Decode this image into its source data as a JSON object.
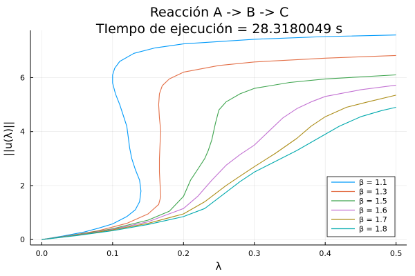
{
  "chart_data": {
    "type": "line",
    "title": "Reacción A -> B -> C",
    "subtitle": "TIempo de ejecución = 28.3180049 s",
    "xlabel": "λ",
    "ylabel": "||u(λ)||",
    "xlim": [
      -0.016,
      0.515
    ],
    "ylim": [
      -0.2,
      7.75
    ],
    "xticks": [
      0.0,
      0.1,
      0.2,
      0.3,
      0.4,
      0.5
    ],
    "xtick_labels": [
      "0.0",
      "0.1",
      "0.2",
      "0.3",
      "0.4",
      "0.5"
    ],
    "yticks": [
      0,
      2,
      4,
      6
    ],
    "ytick_labels": [
      "0",
      "2",
      "4",
      "6"
    ],
    "grid": true,
    "legend_position": "bottom-right",
    "series": [
      {
        "name": "β = 1.1",
        "color": "#009AFA",
        "points": [
          [
            0,
            0
          ],
          [
            0.03,
            0.13
          ],
          [
            0.06,
            0.28
          ],
          [
            0.08,
            0.42
          ],
          [
            0.1,
            0.58
          ],
          [
            0.12,
            0.85
          ],
          [
            0.132,
            1.1
          ],
          [
            0.138,
            1.4
          ],
          [
            0.14,
            1.8
          ],
          [
            0.138,
            2.2
          ],
          [
            0.132,
            2.6
          ],
          [
            0.127,
            3.0
          ],
          [
            0.124,
            3.4
          ],
          [
            0.122,
            3.8
          ],
          [
            0.12,
            4.2
          ],
          [
            0.115,
            4.6
          ],
          [
            0.11,
            5.0
          ],
          [
            0.104,
            5.4
          ],
          [
            0.1,
            5.8
          ],
          [
            0.1,
            6.1
          ],
          [
            0.103,
            6.35
          ],
          [
            0.11,
            6.6
          ],
          [
            0.13,
            6.9
          ],
          [
            0.16,
            7.1
          ],
          [
            0.2,
            7.25
          ],
          [
            0.3,
            7.42
          ],
          [
            0.4,
            7.52
          ],
          [
            0.5,
            7.58
          ]
        ]
      },
      {
        "name": "β = 1.3",
        "color": "#E36F47",
        "points": [
          [
            0,
            0
          ],
          [
            0.04,
            0.15
          ],
          [
            0.08,
            0.33
          ],
          [
            0.12,
            0.6
          ],
          [
            0.15,
            0.95
          ],
          [
            0.165,
            1.3
          ],
          [
            0.168,
            1.6
          ],
          [
            0.167,
            2.0
          ],
          [
            0.166,
            2.5
          ],
          [
            0.166,
            3.0
          ],
          [
            0.167,
            3.6
          ],
          [
            0.168,
            4.0
          ],
          [
            0.166,
            4.5
          ],
          [
            0.165,
            5.0
          ],
          [
            0.166,
            5.4
          ],
          [
            0.17,
            5.7
          ],
          [
            0.18,
            5.95
          ],
          [
            0.2,
            6.2
          ],
          [
            0.25,
            6.45
          ],
          [
            0.3,
            6.58
          ],
          [
            0.4,
            6.72
          ],
          [
            0.5,
            6.82
          ]
        ]
      },
      {
        "name": "β = 1.5",
        "color": "#3EA44E",
        "points": [
          [
            0,
            0
          ],
          [
            0.05,
            0.18
          ],
          [
            0.1,
            0.4
          ],
          [
            0.15,
            0.72
          ],
          [
            0.18,
            1.05
          ],
          [
            0.2,
            1.6
          ],
          [
            0.21,
            2.2
          ],
          [
            0.22,
            2.6
          ],
          [
            0.23,
            3.0
          ],
          [
            0.235,
            3.3
          ],
          [
            0.24,
            3.7
          ],
          [
            0.245,
            4.3
          ],
          [
            0.25,
            4.8
          ],
          [
            0.26,
            5.1
          ],
          [
            0.28,
            5.4
          ],
          [
            0.3,
            5.6
          ],
          [
            0.35,
            5.82
          ],
          [
            0.4,
            5.95
          ],
          [
            0.5,
            6.1
          ]
        ]
      },
      {
        "name": "β = 1.6",
        "color": "#C271D2",
        "points": [
          [
            0,
            0
          ],
          [
            0.05,
            0.17
          ],
          [
            0.1,
            0.38
          ],
          [
            0.15,
            0.66
          ],
          [
            0.2,
            1.15
          ],
          [
            0.22,
            1.6
          ],
          [
            0.24,
            2.2
          ],
          [
            0.26,
            2.75
          ],
          [
            0.28,
            3.15
          ],
          [
            0.3,
            3.5
          ],
          [
            0.32,
            4.0
          ],
          [
            0.34,
            4.5
          ],
          [
            0.36,
            4.85
          ],
          [
            0.38,
            5.1
          ],
          [
            0.4,
            5.3
          ],
          [
            0.45,
            5.55
          ],
          [
            0.5,
            5.72
          ]
        ]
      },
      {
        "name": "β = 1.7",
        "color": "#AC8D18",
        "points": [
          [
            0,
            0
          ],
          [
            0.05,
            0.16
          ],
          [
            0.1,
            0.36
          ],
          [
            0.15,
            0.6
          ],
          [
            0.2,
            0.95
          ],
          [
            0.23,
            1.4
          ],
          [
            0.26,
            2.0
          ],
          [
            0.28,
            2.35
          ],
          [
            0.3,
            2.7
          ],
          [
            0.33,
            3.2
          ],
          [
            0.36,
            3.75
          ],
          [
            0.38,
            4.2
          ],
          [
            0.4,
            4.55
          ],
          [
            0.43,
            4.9
          ],
          [
            0.46,
            5.1
          ],
          [
            0.5,
            5.35
          ]
        ]
      },
      {
        "name": "β = 1.8",
        "color": "#00A9AD",
        "points": [
          [
            0,
            0
          ],
          [
            0.05,
            0.15
          ],
          [
            0.1,
            0.33
          ],
          [
            0.15,
            0.56
          ],
          [
            0.2,
            0.85
          ],
          [
            0.23,
            1.15
          ],
          [
            0.26,
            1.75
          ],
          [
            0.28,
            2.15
          ],
          [
            0.3,
            2.5
          ],
          [
            0.33,
            2.9
          ],
          [
            0.36,
            3.3
          ],
          [
            0.39,
            3.75
          ],
          [
            0.42,
            4.2
          ],
          [
            0.45,
            4.55
          ],
          [
            0.48,
            4.78
          ],
          [
            0.5,
            4.9
          ]
        ]
      }
    ]
  }
}
